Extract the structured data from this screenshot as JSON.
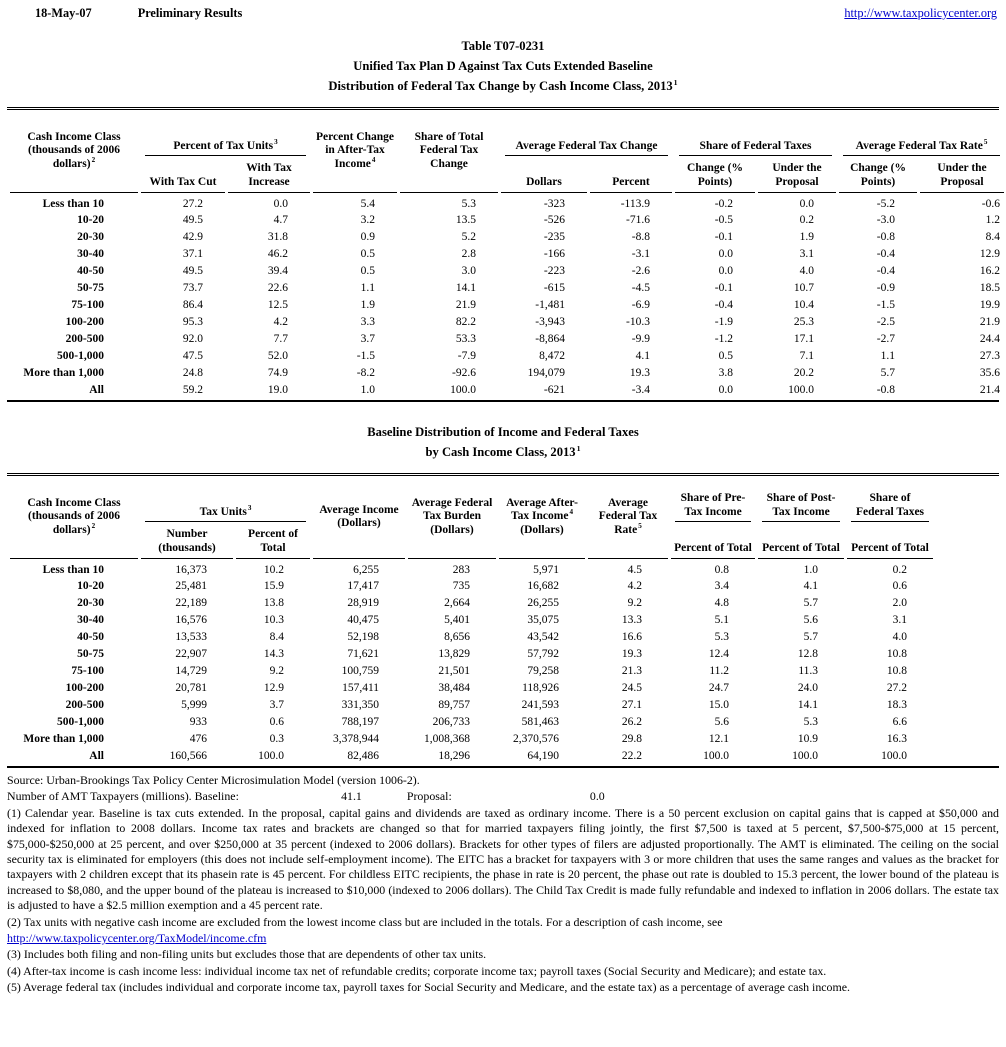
{
  "page_header": {
    "date": "18-May-07",
    "status": "Preliminary Results",
    "url": "http://www.taxpolicycenter.org"
  },
  "title": {
    "line1": "Table T07-0231",
    "line2": "Unified Tax Plan D Against Tax Cuts Extended Baseline",
    "line3": "Distribution of Federal Tax Change by Cash Income Class, 2013",
    "line3_sup": "1"
  },
  "table1": {
    "stub": {
      "text": "Cash Income Class (thousands of 2006 dollars)",
      "sup": "2"
    },
    "groups": {
      "tax_units": {
        "text": "Percent of Tax Units",
        "sup": "3"
      },
      "pct_change": {
        "text": "Percent Change in After-Tax Income",
        "sup": "4"
      },
      "share_total": "Share of Total Federal Tax Change",
      "avg_change": "Average Federal Tax Change",
      "share_taxes": "Share of Federal Taxes",
      "avg_rate": {
        "text": "Average Federal Tax Rate",
        "sup": "5"
      }
    },
    "sub": {
      "with_cut": "With Tax Cut",
      "with_inc": "With Tax Increase",
      "dollars": "Dollars",
      "percent": "Percent",
      "change_pts": "Change (% Points)",
      "under_proposal": "Under the Proposal"
    },
    "rows": [
      {
        "label": "Less than 10",
        "cells": [
          "27.2",
          "0.0",
          "5.4",
          "5.3",
          "-323",
          "-113.9",
          "-0.2",
          "0.0",
          "-5.2",
          "-0.6"
        ]
      },
      {
        "label": "10-20",
        "cells": [
          "49.5",
          "4.7",
          "3.2",
          "13.5",
          "-526",
          "-71.6",
          "-0.5",
          "0.2",
          "-3.0",
          "1.2"
        ]
      },
      {
        "label": "20-30",
        "cells": [
          "42.9",
          "31.8",
          "0.9",
          "5.2",
          "-235",
          "-8.8",
          "-0.1",
          "1.9",
          "-0.8",
          "8.4"
        ]
      },
      {
        "label": "30-40",
        "cells": [
          "37.1",
          "46.2",
          "0.5",
          "2.8",
          "-166",
          "-3.1",
          "0.0",
          "3.1",
          "-0.4",
          "12.9"
        ]
      },
      {
        "label": "40-50",
        "cells": [
          "49.5",
          "39.4",
          "0.5",
          "3.0",
          "-223",
          "-2.6",
          "0.0",
          "4.0",
          "-0.4",
          "16.2"
        ]
      },
      {
        "label": "50-75",
        "cells": [
          "73.7",
          "22.6",
          "1.1",
          "14.1",
          "-615",
          "-4.5",
          "-0.1",
          "10.7",
          "-0.9",
          "18.5"
        ]
      },
      {
        "label": "75-100",
        "cells": [
          "86.4",
          "12.5",
          "1.9",
          "21.9",
          "-1,481",
          "-6.9",
          "-0.4",
          "10.4",
          "-1.5",
          "19.9"
        ]
      },
      {
        "label": "100-200",
        "cells": [
          "95.3",
          "4.2",
          "3.3",
          "82.2",
          "-3,943",
          "-10.3",
          "-1.9",
          "25.3",
          "-2.5",
          "21.9"
        ]
      },
      {
        "label": "200-500",
        "cells": [
          "92.0",
          "7.7",
          "3.7",
          "53.3",
          "-8,864",
          "-9.9",
          "-1.2",
          "17.1",
          "-2.7",
          "24.4"
        ]
      },
      {
        "label": "500-1,000",
        "cells": [
          "47.5",
          "52.0",
          "-1.5",
          "-7.9",
          "8,472",
          "4.1",
          "0.5",
          "7.1",
          "1.1",
          "27.3"
        ]
      },
      {
        "label": "More than 1,000",
        "cells": [
          "24.8",
          "74.9",
          "-8.2",
          "-92.6",
          "194,079",
          "19.3",
          "3.8",
          "20.2",
          "5.7",
          "35.6"
        ]
      },
      {
        "label": "All",
        "cells": [
          "59.2",
          "19.0",
          "1.0",
          "100.0",
          "-621",
          "-3.4",
          "0.0",
          "100.0",
          "-0.8",
          "21.4"
        ]
      }
    ]
  },
  "table2": {
    "title_line1": "Baseline Distribution of Income and Federal Taxes",
    "title_line2": "by Cash Income Class, 2013",
    "title_sup": "1",
    "stub": {
      "text": "Cash Income Class (thousands of 2006 dollars)",
      "sup": "2"
    },
    "groups": {
      "tax_units": {
        "text": "Tax Units",
        "sup": "3"
      },
      "avg_income": "Average Income (Dollars)",
      "burden": "Average Federal Tax Burden (Dollars)",
      "after_tax": {
        "text": "Average After-Tax Income",
        "sup": "4",
        "line2": "(Dollars)"
      },
      "rate": {
        "text": "Average Federal Tax Rate",
        "sup": "5"
      },
      "share_pre": "Share of Pre-Tax Income",
      "share_post": "Share of Post-Tax Income",
      "share_fed": "Share of Federal Taxes"
    },
    "sub": {
      "number": "Number (thousands)",
      "pct_total": "Percent of Total"
    },
    "rows": [
      {
        "label": "Less than 10",
        "cells": [
          "16,373",
          "10.2",
          "6,255",
          "283",
          "5,971",
          "4.5",
          "0.8",
          "1.0",
          "0.2"
        ]
      },
      {
        "label": "10-20",
        "cells": [
          "25,481",
          "15.9",
          "17,417",
          "735",
          "16,682",
          "4.2",
          "3.4",
          "4.1",
          "0.6"
        ]
      },
      {
        "label": "20-30",
        "cells": [
          "22,189",
          "13.8",
          "28,919",
          "2,664",
          "26,255",
          "9.2",
          "4.8",
          "5.7",
          "2.0"
        ]
      },
      {
        "label": "30-40",
        "cells": [
          "16,576",
          "10.3",
          "40,475",
          "5,401",
          "35,075",
          "13.3",
          "5.1",
          "5.6",
          "3.1"
        ]
      },
      {
        "label": "40-50",
        "cells": [
          "13,533",
          "8.4",
          "52,198",
          "8,656",
          "43,542",
          "16.6",
          "5.3",
          "5.7",
          "4.0"
        ]
      },
      {
        "label": "50-75",
        "cells": [
          "22,907",
          "14.3",
          "71,621",
          "13,829",
          "57,792",
          "19.3",
          "12.4",
          "12.8",
          "10.8"
        ]
      },
      {
        "label": "75-100",
        "cells": [
          "14,729",
          "9.2",
          "100,759",
          "21,501",
          "79,258",
          "21.3",
          "11.2",
          "11.3",
          "10.8"
        ]
      },
      {
        "label": "100-200",
        "cells": [
          "20,781",
          "12.9",
          "157,411",
          "38,484",
          "118,926",
          "24.5",
          "24.7",
          "24.0",
          "27.2"
        ]
      },
      {
        "label": "200-500",
        "cells": [
          "5,999",
          "3.7",
          "331,350",
          "89,757",
          "241,593",
          "27.1",
          "15.0",
          "14.1",
          "18.3"
        ]
      },
      {
        "label": "500-1,000",
        "cells": [
          "933",
          "0.6",
          "788,197",
          "206,733",
          "581,463",
          "26.2",
          "5.6",
          "5.3",
          "6.6"
        ]
      },
      {
        "label": "More than 1,000",
        "cells": [
          "476",
          "0.3",
          "3,378,944",
          "1,008,368",
          "2,370,576",
          "29.8",
          "12.1",
          "10.9",
          "16.3"
        ]
      },
      {
        "label": "All",
        "cells": [
          "160,566",
          "100.0",
          "82,486",
          "18,296",
          "64,190",
          "22.2",
          "100.0",
          "100.0",
          "100.0"
        ]
      }
    ]
  },
  "footnotes": {
    "source": "Source: Urban-Brookings Tax Policy Center Microsimulation Model (version 1006-2).",
    "amt_label": "Number of AMT Taxpayers (millions).  Baseline:",
    "amt_baseline": "41.1",
    "amt_proposal_label": "Proposal:",
    "amt_proposal": "0.0",
    "fn1": "(1) Calendar year. Baseline is tax cuts extended.  In the proposal, capital gains and dividends are taxed as ordinary income.  There is a 50 percent exclusion on capital gains that is capped at $50,000 and indexed for inflation to 2008 dollars.  Income tax rates and brackets are changed so that for married taxpayers filing jointly, the first $7,500 is taxed at 5 percent, $7,500-$75,000 at 15 percent, $75,000-$250,000 at 25 percent, and over $250,000 at 35 percent (indexed to 2006 dollars).  Brackets for other types of filers are adjusted proportionally.  The AMT is eliminated. The ceiling on the social security tax is eliminated for employers (this does not include self-employment income).  The EITC has a bracket for taxpayers with 3 or more children that uses the same ranges and values as the bracket for taxpayers with 2 children except that its phasein rate is 45 percent.  For childless EITC recipients, the phase in rate is 20 percent, the phase out rate is doubled to 15.3 percent, the lower bound of the plateau is increased to $8,080, and the upper bound of the plateau is increased to $10,000 (indexed to 2006 dollars).  The Child Tax Credit is made fully refundable and indexed to inflation in 2006 dollars.  The estate tax is adjusted to have a $2.5 million exemption and a 45 percent rate.",
    "fn2": "(2) Tax units with negative cash income are excluded from the lowest income class but are included in the totals. For a description of cash income, see",
    "fn2_link": "http://www.taxpolicycenter.org/TaxModel/income.cfm",
    "fn3": "(3) Includes both filing and non-filing units but excludes those that are dependents of other tax units.",
    "fn4": "(4) After-tax income is cash income less: individual income tax net of refundable credits; corporate income tax; payroll taxes (Social Security and Medicare); and estate tax.",
    "fn5": "(5) Average federal tax (includes individual and corporate income tax, payroll taxes for Social Security and Medicare, and the estate tax) as a percentage of average cash income."
  }
}
